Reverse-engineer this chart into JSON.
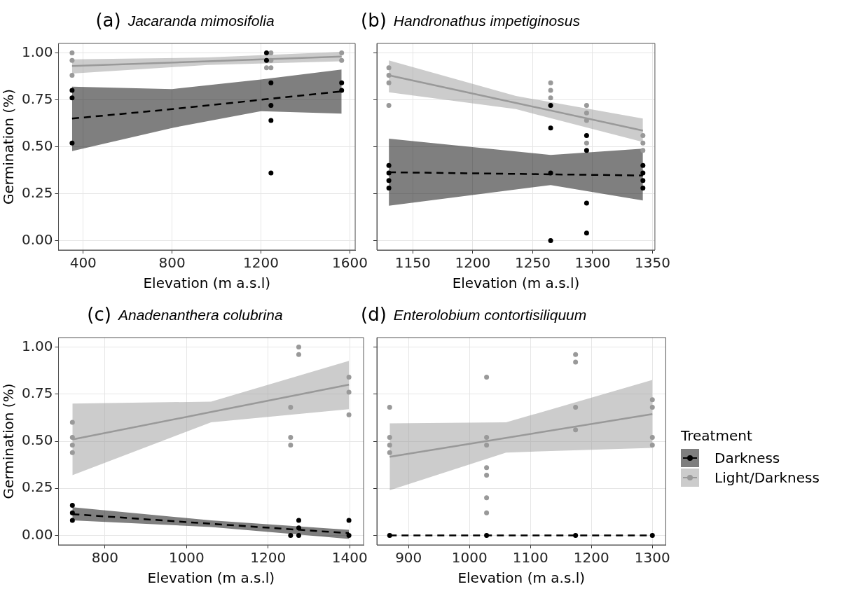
{
  "chart_data": [
    {
      "type": "scatter",
      "title": "(a)",
      "subtitle": "Jacaranda mimosifolia",
      "xlabel": "Elevation (m a.s.l)",
      "ylabel": "Germination (%)",
      "xlim": [
        289,
        1624
      ],
      "xticks": [
        400,
        800,
        1200,
        1600
      ],
      "ylim": [
        -0.05,
        1.05
      ],
      "yticks": [
        {
          "value": 0,
          "label": "0.00"
        },
        {
          "value": 0.25,
          "label": "0.25"
        },
        {
          "value": 0.5,
          "label": "0.50"
        },
        {
          "value": 0.75,
          "label": "0.75"
        },
        {
          "value": 1,
          "label": "1.00"
        }
      ],
      "grid": true,
      "marker": "circle",
      "series": [
        {
          "type": "scatter",
          "color": "#000000",
          "x": [
            350,
            350,
            350,
            1225,
            1225,
            1245,
            1245,
            1245,
            1245,
            1563,
            1563
          ],
          "values": [
            0.8,
            0.76,
            0.52,
            1.0,
            0.96,
            0.84,
            0.72,
            0.64,
            0.36,
            0.84,
            0.8
          ]
        },
        {
          "type": "scatter",
          "color": "#999999",
          "x": [
            350,
            350,
            350,
            1225,
            1245,
            1245,
            1245,
            1563,
            1563
          ],
          "values": [
            1.0,
            0.96,
            0.88,
            0.92,
            1.0,
            0.96,
            0.92,
            1.0,
            0.96
          ]
        },
        {
          "type": "line",
          "marker": "none",
          "color": "#000000",
          "line_style": "dashed",
          "x": [
            350,
            800,
            1200,
            1563
          ],
          "values": [
            0.65,
            0.7,
            0.75,
            0.795
          ],
          "lower": [
            0.477,
            0.6,
            0.689,
            0.676
          ],
          "upper": [
            0.82,
            0.807,
            0.858,
            0.911
          ]
        },
        {
          "type": "line",
          "marker": "none",
          "color": "#999999",
          "line_style": "solid",
          "x": [
            350,
            960,
            1563
          ],
          "values": [
            0.93,
            0.955,
            0.98
          ],
          "lower": [
            0.89,
            0.935,
            0.955
          ],
          "upper": [
            0.965,
            0.975,
            1.005
          ]
        }
      ]
    },
    {
      "type": "scatter",
      "title": "(b)",
      "subtitle": "Handronathus impetiginosus",
      "xlabel": "Elevation (m a.s.l)",
      "xlim": [
        1120,
        1352
      ],
      "xticks": [
        1150,
        1200,
        1250,
        1300,
        1350
      ],
      "ylim": [
        -0.05,
        1.05
      ],
      "yticks": [
        {
          "value": 0,
          "label": null
        },
        {
          "value": 0.25,
          "label": null
        },
        {
          "value": 0.5,
          "label": null
        },
        {
          "value": 0.75,
          "label": null
        },
        {
          "value": 1,
          "label": null
        }
      ],
      "tick_labels": "x",
      "grid": true,
      "marker": "circle",
      "series": [
        {
          "type": "scatter",
          "color": "#000000",
          "x": [
            1130,
            1130,
            1130,
            1130,
            1265,
            1265,
            1265,
            1265,
            1295,
            1295,
            1295,
            1295,
            1342,
            1342,
            1342,
            1342
          ],
          "values": [
            0.4,
            0.36,
            0.32,
            0.28,
            0.72,
            0.6,
            0.36,
            0.0,
            0.56,
            0.48,
            0.2,
            0.04,
            0.4,
            0.36,
            0.32,
            0.28
          ]
        },
        {
          "type": "scatter",
          "color": "#999999",
          "x": [
            1130,
            1130,
            1130,
            1130,
            1265,
            1265,
            1265,
            1295,
            1295,
            1295,
            1295,
            1342,
            1342,
            1342
          ],
          "values": [
            0.92,
            0.88,
            0.84,
            0.72,
            0.84,
            0.8,
            0.76,
            0.72,
            0.68,
            0.64,
            0.52,
            0.56,
            0.52,
            0.48
          ]
        },
        {
          "type": "line",
          "marker": "none",
          "color": "#000000",
          "line_style": "dashed",
          "x": [
            1130,
            1265,
            1342
          ],
          "values": [
            0.364,
            0.353,
            0.347
          ],
          "lower": [
            0.186,
            0.296,
            0.214
          ],
          "upper": [
            0.543,
            0.456,
            0.49
          ]
        },
        {
          "type": "line",
          "marker": "none",
          "color": "#999999",
          "line_style": "solid",
          "x": [
            1130,
            1236,
            1342
          ],
          "values": [
            0.88,
            0.733,
            0.586
          ],
          "lower": [
            0.79,
            0.7,
            0.525
          ],
          "upper": [
            0.96,
            0.77,
            0.65
          ]
        }
      ]
    },
    {
      "type": "scatter",
      "title": "(c)",
      "subtitle": "Anadenanthera colubrina",
      "xlabel": "Elevation (m a.s.l)",
      "ylabel": "Germination (%)",
      "xlim": [
        686,
        1434
      ],
      "xticks": [
        800,
        1000,
        1200,
        1400
      ],
      "ylim": [
        -0.05,
        1.05
      ],
      "yticks": [
        {
          "value": 0,
          "label": "0.00"
        },
        {
          "value": 0.25,
          "label": "0.25"
        },
        {
          "value": 0.5,
          "label": "0.50"
        },
        {
          "value": 0.75,
          "label": "0.75"
        },
        {
          "value": 1,
          "label": "1.00"
        }
      ],
      "grid": true,
      "marker": "circle",
      "series": [
        {
          "type": "scatter",
          "color": "#000000",
          "x": [
            720,
            720,
            720,
            1255,
            1275,
            1275,
            1275,
            1398,
            1398
          ],
          "values": [
            0.16,
            0.12,
            0.08,
            0.0,
            0.08,
            0.04,
            0.0,
            0.08,
            0.0
          ]
        },
        {
          "type": "scatter",
          "color": "#999999",
          "x": [
            720,
            720,
            720,
            720,
            1255,
            1255,
            1255,
            1275,
            1275,
            1398,
            1398,
            1398
          ],
          "values": [
            0.6,
            0.52,
            0.48,
            0.44,
            0.68,
            0.52,
            0.48,
            1.0,
            0.96,
            0.84,
            0.76,
            0.64
          ]
        },
        {
          "type": "line",
          "marker": "none",
          "color": "#000000",
          "line_style": "dashed",
          "x": [
            720,
            1060,
            1398
          ],
          "values": [
            0.113,
            0.062,
            0.012
          ],
          "lower": [
            0.08,
            0.045,
            -0.018
          ],
          "upper": [
            0.15,
            0.08,
            0.03
          ]
        },
        {
          "type": "line",
          "marker": "none",
          "color": "#999999",
          "line_style": "solid",
          "x": [
            720,
            1060,
            1398
          ],
          "values": [
            0.509,
            0.655,
            0.8
          ],
          "lower": [
            0.32,
            0.6,
            0.67
          ],
          "upper": [
            0.7,
            0.71,
            0.926
          ]
        }
      ]
    },
    {
      "type": "scatter",
      "title": "(d)",
      "subtitle": "Enterolobium contortisiliquum",
      "xlabel": "Elevation (m a.s.l)",
      "xlim": [
        848,
        1322
      ],
      "xticks": [
        900,
        1000,
        1100,
        1200,
        1300
      ],
      "ylim": [
        -0.05,
        1.05
      ],
      "yticks": [
        {
          "value": 0,
          "label": null
        },
        {
          "value": 0.25,
          "label": null
        },
        {
          "value": 0.5,
          "label": null
        },
        {
          "value": 0.75,
          "label": null
        },
        {
          "value": 1,
          "label": null
        }
      ],
      "tick_labels": "x",
      "grid": true,
      "marker": "circle",
      "legend": "right",
      "legend_title": "Treatment",
      "series": [
        {
          "name": "Darkness",
          "type": "scatter",
          "color": "#000000",
          "x": [
            869,
            1028,
            1174,
            1300
          ],
          "values": [
            0.0,
            0.0,
            0.0,
            0.0
          ]
        },
        {
          "name": "Light/Darkness",
          "type": "scatter",
          "color": "#999999",
          "x": [
            869,
            869,
            869,
            869,
            1028,
            1028,
            1028,
            1028,
            1028,
            1028,
            1028,
            1174,
            1174,
            1174,
            1174,
            1300,
            1300,
            1300,
            1300
          ],
          "values": [
            0.68,
            0.52,
            0.48,
            0.44,
            0.84,
            0.52,
            0.48,
            0.36,
            0.32,
            0.2,
            0.12,
            0.96,
            0.92,
            0.68,
            0.56,
            0.72,
            0.68,
            0.52,
            0.48
          ]
        },
        {
          "type": "line",
          "marker": "none",
          "color": "#000000",
          "line_style": "dashed",
          "x": [
            869,
            1300
          ],
          "values": [
            0.0,
            0.0
          ]
        },
        {
          "type": "line",
          "marker": "none",
          "color": "#999999",
          "line_style": "solid",
          "x": [
            869,
            1060,
            1300
          ],
          "values": [
            0.417,
            0.518,
            0.644
          ],
          "lower": [
            0.24,
            0.44,
            0.465
          ],
          "upper": [
            0.595,
            0.6,
            0.825
          ]
        }
      ]
    }
  ]
}
